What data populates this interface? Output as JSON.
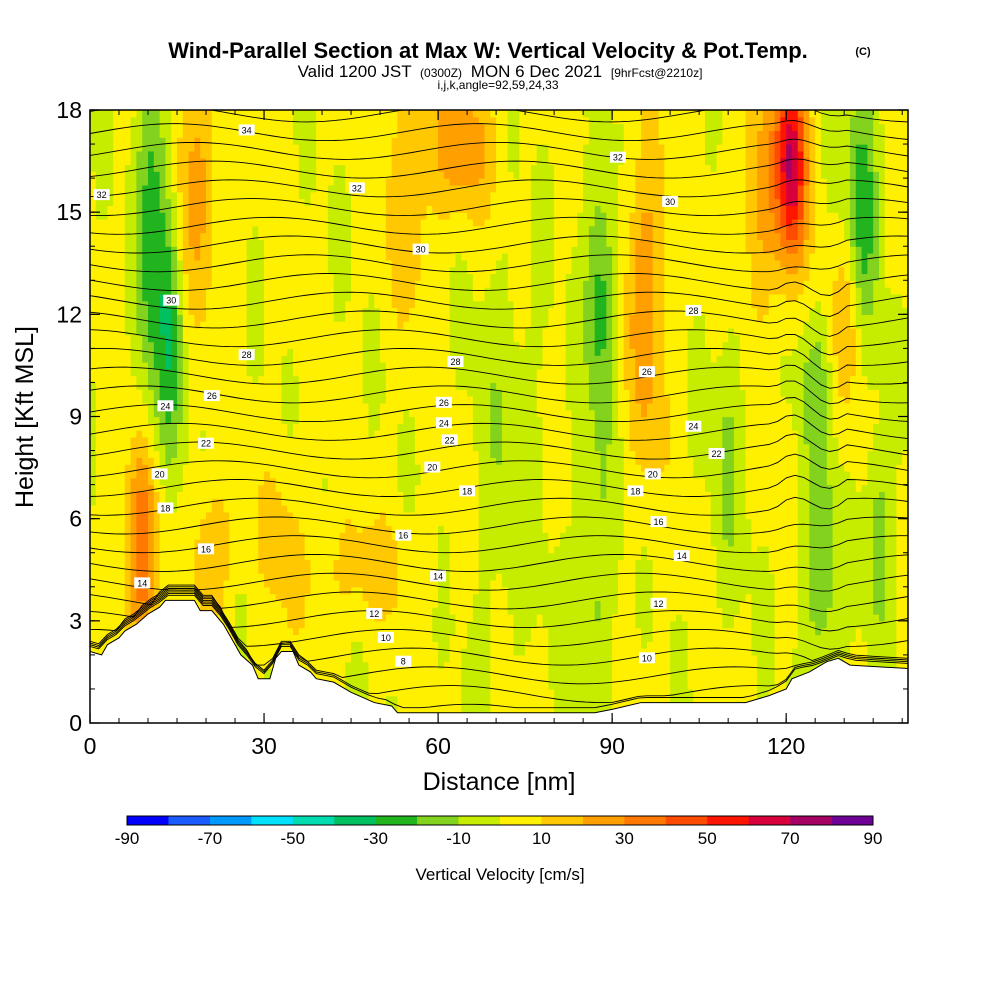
{
  "titles": {
    "main": "Wind-Parallel Section at Max W: Vertical Velocity & Pot.Temp.",
    "main_suffix": "(C)",
    "valid_prefix": "Valid 1200 JST",
    "valid_utc": "(0300Z)",
    "valid_date": "MON 6 Dec 2021",
    "valid_fcst": "[9hrFcst@2210z]",
    "indices": "i,j,k,angle=92,59,24,33"
  },
  "chart_data": {
    "type": "contour-section",
    "xlabel": "Distance [nm]",
    "ylabel": "Height [Kft MSL]",
    "xlim": [
      0,
      141
    ],
    "ylim": [
      0,
      18
    ],
    "x_ticks": [
      0,
      30,
      60,
      90,
      120
    ],
    "y_ticks": [
      0,
      3,
      6,
      9,
      12,
      15,
      18
    ],
    "colorbar": {
      "title": "Vertical Velocity [cm/s]",
      "boundaries": [
        -90,
        -80,
        -70,
        -60,
        -50,
        -40,
        -30,
        -20,
        -10,
        0,
        10,
        20,
        30,
        40,
        50,
        60,
        70,
        80,
        90
      ],
      "tick_labels": [
        "-90",
        "-70",
        "-50",
        "-30",
        "-10",
        "10",
        "30",
        "50",
        "70",
        "90"
      ],
      "colors": [
        "#0000ff",
        "#1a5cff",
        "#0099ff",
        "#00e0ff",
        "#00dbb0",
        "#00c060",
        "#22b41e",
        "#82d21e",
        "#c6ec00",
        "#fff000",
        "#ffc800",
        "#ffa000",
        "#ff7800",
        "#ff4b00",
        "#ff1400",
        "#d7003c",
        "#a50064",
        "#6e0096"
      ]
    },
    "terrain": [
      [
        0,
        2.1
      ],
      [
        2,
        2.0
      ],
      [
        3,
        2.3
      ],
      [
        5,
        2.5
      ],
      [
        6,
        2.7
      ],
      [
        8,
        2.9
      ],
      [
        10,
        3.2
      ],
      [
        12,
        3.4
      ],
      [
        13,
        3.6
      ],
      [
        18,
        3.6
      ],
      [
        19,
        3.3
      ],
      [
        21,
        3.3
      ],
      [
        22,
        3.1
      ],
      [
        23,
        2.9
      ],
      [
        24,
        2.6
      ],
      [
        25,
        2.3
      ],
      [
        26,
        2.0
      ],
      [
        28,
        1.7
      ],
      [
        29,
        1.3
      ],
      [
        31,
        1.3
      ],
      [
        32,
        1.9
      ],
      [
        33,
        2.1
      ],
      [
        35,
        2.1
      ],
      [
        36,
        1.7
      ],
      [
        38,
        1.5
      ],
      [
        39,
        1.3
      ],
      [
        42,
        1.2
      ],
      [
        45,
        0.9
      ],
      [
        49,
        0.6
      ],
      [
        52,
        0.5
      ],
      [
        53,
        0.3
      ],
      [
        73,
        0.3
      ],
      [
        78,
        0.3
      ],
      [
        87,
        0.3
      ],
      [
        90,
        0.4
      ],
      [
        95,
        0.6
      ],
      [
        105,
        0.6
      ],
      [
        113,
        0.6
      ],
      [
        117,
        0.8
      ],
      [
        120,
        1.0
      ],
      [
        121,
        1.3
      ],
      [
        124,
        1.5
      ],
      [
        127,
        1.8
      ],
      [
        129,
        1.9
      ],
      [
        131,
        1.7
      ],
      [
        141,
        1.6
      ]
    ],
    "w_features": [
      {
        "x": 9,
        "y": 5.0,
        "sx": 2,
        "sy": 2.2,
        "w": 38
      },
      {
        "x": 21,
        "y": 5.0,
        "sx": 2.5,
        "sy": 1.5,
        "w": 18
      },
      {
        "x": 11,
        "y": 14.5,
        "sx": 2,
        "sy": 4,
        "w": -30
      },
      {
        "x": 14,
        "y": 11.5,
        "sx": 1.5,
        "sy": 3,
        "w": -22
      },
      {
        "x": 18,
        "y": 16,
        "sx": 3,
        "sy": 2.5,
        "w": 22
      },
      {
        "x": 64,
        "y": 17,
        "sx": 4,
        "sy": 1.5,
        "w": 25
      },
      {
        "x": 55,
        "y": 16,
        "sx": 3,
        "sy": 3,
        "w": 15
      },
      {
        "x": 47,
        "y": 4.5,
        "sx": 7,
        "sy": 1.2,
        "w": 12
      },
      {
        "x": 33,
        "y": 5.5,
        "sx": 3,
        "sy": 2,
        "w": 10
      },
      {
        "x": 88,
        "y": 12.5,
        "sx": 1.8,
        "sy": 2.5,
        "w": -28
      },
      {
        "x": 87,
        "y": 4,
        "sx": 2.5,
        "sy": 3,
        "w": -14
      },
      {
        "x": 96,
        "y": 12.5,
        "sx": 2.5,
        "sy": 3.5,
        "w": 25
      },
      {
        "x": 121,
        "y": 16.5,
        "sx": 1.8,
        "sy": 2,
        "w": 65
      },
      {
        "x": 116,
        "y": 15.5,
        "sx": 3,
        "sy": 2.5,
        "w": 22
      },
      {
        "x": 133,
        "y": 15,
        "sx": 2,
        "sy": 3,
        "w": -30
      },
      {
        "x": 126,
        "y": 4.5,
        "sx": 2,
        "sy": 2.5,
        "w": -22
      },
      {
        "x": 136,
        "y": 5.5,
        "sx": 1.5,
        "sy": 2,
        "w": -20
      },
      {
        "x": 131,
        "y": 12,
        "sx": 2,
        "sy": 2,
        "w": 20
      },
      {
        "x": 125,
        "y": 10,
        "sx": 2,
        "sy": 1.5,
        "w": -15
      },
      {
        "x": 110,
        "y": 8,
        "sx": 2,
        "sy": 3,
        "w": -12
      },
      {
        "x": 72,
        "y": 8,
        "sx": 4,
        "sy": 4,
        "w": -10
      }
    ],
    "contour_labels": [
      {
        "value": "34",
        "x": 27,
        "y": 17.4
      },
      {
        "value": "32",
        "x": 2,
        "y": 15.5
      },
      {
        "value": "32",
        "x": 46,
        "y": 15.7
      },
      {
        "value": "32",
        "x": 91,
        "y": 16.6
      },
      {
        "value": "30",
        "x": 14,
        "y": 12.4
      },
      {
        "value": "30",
        "x": 57,
        "y": 13.9
      },
      {
        "value": "30",
        "x": 100,
        "y": 15.3
      },
      {
        "value": "28",
        "x": 27,
        "y": 10.8
      },
      {
        "value": "28",
        "x": 63,
        "y": 10.6
      },
      {
        "value": "28",
        "x": 104,
        "y": 12.1
      },
      {
        "value": "26",
        "x": 21,
        "y": 9.6
      },
      {
        "value": "26",
        "x": 61,
        "y": 9.4
      },
      {
        "value": "26",
        "x": 96,
        "y": 10.3
      },
      {
        "value": "24",
        "x": 13,
        "y": 9.3
      },
      {
        "value": "24",
        "x": 61,
        "y": 8.8
      },
      {
        "value": "24",
        "x": 104,
        "y": 8.7
      },
      {
        "value": "22",
        "x": 20,
        "y": 8.2
      },
      {
        "value": "22",
        "x": 62,
        "y": 8.3
      },
      {
        "value": "22",
        "x": 108,
        "y": 7.9
      },
      {
        "value": "20",
        "x": 12,
        "y": 7.3
      },
      {
        "value": "20",
        "x": 59,
        "y": 7.5
      },
      {
        "value": "20",
        "x": 97,
        "y": 7.3
      },
      {
        "value": "18",
        "x": 13,
        "y": 6.3
      },
      {
        "value": "18",
        "x": 65,
        "y": 6.8
      },
      {
        "value": "18",
        "x": 94,
        "y": 6.8
      },
      {
        "value": "16",
        "x": 20,
        "y": 5.1
      },
      {
        "value": "16",
        "x": 54,
        "y": 5.5
      },
      {
        "value": "16",
        "x": 98,
        "y": 5.9
      },
      {
        "value": "14",
        "x": 9,
        "y": 4.1
      },
      {
        "value": "14",
        "x": 60,
        "y": 4.3
      },
      {
        "value": "14",
        "x": 102,
        "y": 4.9
      },
      {
        "value": "12",
        "x": 49,
        "y": 3.2
      },
      {
        "value": "12",
        "x": 98,
        "y": 3.5
      },
      {
        "value": "10",
        "x": 51,
        "y": 2.5
      },
      {
        "value": "10",
        "x": 96,
        "y": 1.9
      },
      {
        "value": "8",
        "x": 54,
        "y": 1.8
      }
    ]
  }
}
